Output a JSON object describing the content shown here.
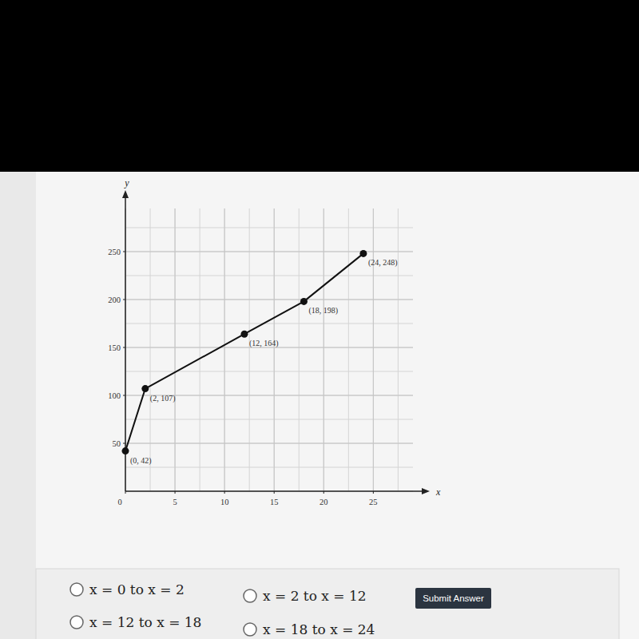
{
  "chart_data": {
    "type": "line",
    "x_label": "x",
    "y_label": "y",
    "x": [
      0,
      2,
      12,
      18,
      24
    ],
    "values": [
      42,
      107,
      164,
      198,
      248
    ],
    "value_labels": [
      "(0, 42)",
      "(2, 107)",
      "(12, 164)",
      "(18, 198)",
      "(24, 248)"
    ],
    "data_labels": true,
    "marker": "circle",
    "color": "#111111",
    "xlim": [
      0,
      29
    ],
    "xticks": [
      0,
      5,
      10,
      15,
      20,
      25
    ],
    "ylim": [
      0,
      295
    ],
    "yticks": [
      50,
      100,
      150,
      200,
      250
    ],
    "grid": true
  },
  "quiz": {
    "options": [
      "x = 0 to x = 2",
      "x = 2 to x = 12",
      "x = 12 to x = 18",
      "x = 18 to x = 24"
    ],
    "button": "Submit Answer"
  }
}
